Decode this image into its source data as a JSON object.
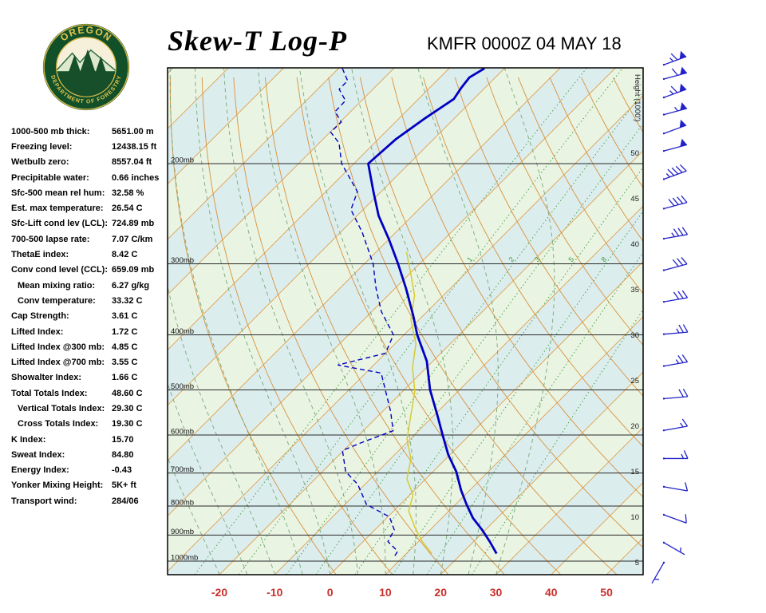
{
  "header": {
    "title": "Skew-T Log-P",
    "station_line": "KMFR 0000Z 04 MAY 18",
    "logo": {
      "top_text": "OREGON",
      "bottom_text": "DEPARTMENT OF FORESTRY"
    }
  },
  "indices": [
    {
      "label": "1000-500 mb thick:",
      "value": "5651.00 m",
      "indent": false
    },
    {
      "label": "Freezing level:",
      "value": "12438.15 ft",
      "indent": false
    },
    {
      "label": "Wetbulb zero:",
      "value": "8557.04 ft",
      "indent": false
    },
    {
      "label": "Precipitable water:",
      "value": "0.66 inches",
      "indent": false
    },
    {
      "label": "Sfc-500 mean rel hum:",
      "value": "32.58 %",
      "indent": false
    },
    {
      "label": "Est. max temperature:",
      "value": "26.54 C",
      "indent": false
    },
    {
      "label": "Sfc-Lift cond lev (LCL):",
      "value": "724.89 mb",
      "indent": false
    },
    {
      "label": "700-500 lapse rate:",
      "value": "7.07 C/km",
      "indent": false
    },
    {
      "label": "ThetaE index:",
      "value": "8.42 C",
      "indent": false
    },
    {
      "label": "Conv cond level (CCL):",
      "value": "659.09 mb",
      "indent": false
    },
    {
      "label": "Mean mixing ratio:",
      "value": "6.27 g/kg",
      "indent": true
    },
    {
      "label": "Conv temperature:",
      "value": "33.32 C",
      "indent": true
    },
    {
      "label": "Cap Strength:",
      "value": "3.61 C",
      "indent": false
    },
    {
      "label": "Lifted Index:",
      "value": "1.72 C",
      "indent": false
    },
    {
      "label": "Lifted Index @300 mb:",
      "value": "4.85 C",
      "indent": false
    },
    {
      "label": "Lifted Index @700 mb:",
      "value": "3.55 C",
      "indent": false
    },
    {
      "label": "Showalter Index:",
      "value": "1.66 C",
      "indent": false
    },
    {
      "label": "Total Totals Index:",
      "value": "48.60 C",
      "indent": false
    },
    {
      "label": "Vertical Totals Index:",
      "value": "29.30 C",
      "indent": true
    },
    {
      "label": "Cross Totals Index:",
      "value": "19.30 C",
      "indent": true
    },
    {
      "label": "K Index:",
      "value": "15.70",
      "indent": false
    },
    {
      "label": "Sweat Index:",
      "value": "84.80",
      "indent": false
    },
    {
      "label": "Energy Index:",
      "value": "-0.43",
      "indent": false
    },
    {
      "label": "Yonker Mixing Height:",
      "value": "5K+ ft",
      "indent": false
    },
    {
      "label": "Transport wind:",
      "value": "284/06",
      "indent": false
    }
  ],
  "chart_data": {
    "type": "line",
    "subtype": "skew-t-log-p",
    "title": "Skew-T Log-P",
    "station": "KMFR",
    "valid_time": "0000Z 04 MAY 18",
    "pressure_axis": {
      "levels_mb": [
        200,
        300,
        400,
        500,
        600,
        700,
        800,
        900,
        1000
      ],
      "top_mb": 135.7,
      "bottom_mb": 1056.5,
      "label_suffix": "mb"
    },
    "temp_axis": {
      "ticks_c": [
        -20,
        -10,
        0,
        10,
        20,
        30,
        40,
        50
      ],
      "color": "#c9302c"
    },
    "height_axis": {
      "label": "Height (1000')",
      "ticks_kft": [
        50,
        45,
        40,
        35,
        30,
        25,
        20,
        15,
        10,
        5
      ]
    },
    "isotherms": {
      "min": -130,
      "max": 60,
      "step": 10
    },
    "dry_adiabats_k": {
      "min": 270,
      "max": 460,
      "step": 10
    },
    "moist_adiabats_c": [
      -20,
      -15,
      -10,
      -5,
      0,
      5,
      10,
      15,
      20,
      25,
      30
    ],
    "mixing_ratio_gkg": [
      0.5,
      1,
      2,
      3,
      5,
      8,
      12,
      20
    ],
    "mixing_labels_gkg": [
      1,
      2,
      3,
      5,
      8
    ],
    "temperature_profile": [
      [
        136,
        -63.6
      ],
      [
        141,
        -64.7
      ],
      [
        147,
        -64.3
      ],
      [
        154,
        -63.6
      ],
      [
        167,
        -65.4
      ],
      [
        181,
        -66.8
      ],
      [
        200,
        -67.4
      ],
      [
        224,
        -61.4
      ],
      [
        247,
        -56.1
      ],
      [
        272,
        -49.9
      ],
      [
        300,
        -43.9
      ],
      [
        331,
        -38.1
      ],
      [
        370,
        -31.8
      ],
      [
        400,
        -27.6
      ],
      [
        445,
        -21.1
      ],
      [
        500,
        -15.3
      ],
      [
        554,
        -9.4
      ],
      [
        600,
        -4.9
      ],
      [
        650,
        -0.3
      ],
      [
        696,
        4.2
      ],
      [
        750,
        8.4
      ],
      [
        795,
        12.0
      ],
      [
        840,
        15.6
      ],
      [
        881,
        19.4
      ],
      [
        924,
        22.9
      ],
      [
        970,
        26.3
      ]
    ],
    "dewpoint_profile": [
      [
        136,
        -89.3
      ],
      [
        143,
        -86.1
      ],
      [
        148,
        -86.1
      ],
      [
        155,
        -82.9
      ],
      [
        162,
        -82.8
      ],
      [
        169,
        -79.8
      ],
      [
        176,
        -79.9
      ],
      [
        184,
        -76.4
      ],
      [
        200,
        -72.2
      ],
      [
        224,
        -64.3
      ],
      [
        241,
        -62.2
      ],
      [
        264,
        -56.1
      ],
      [
        300,
        -48.4
      ],
      [
        331,
        -43.5
      ],
      [
        364,
        -38.3
      ],
      [
        400,
        -31.9
      ],
      [
        431,
        -30.0
      ],
      [
        452,
        -36.5
      ],
      [
        467,
        -27.2
      ],
      [
        500,
        -23.4
      ],
      [
        545,
        -18.6
      ],
      [
        590,
        -14.6
      ],
      [
        619,
        -18.2
      ],
      [
        639,
        -20.2
      ],
      [
        696,
        -15.8
      ],
      [
        733,
        -11.3
      ],
      [
        795,
        -6.1
      ],
      [
        836,
        0.3
      ],
      [
        881,
        3.5
      ],
      [
        924,
        4.5
      ],
      [
        961,
        8.0
      ],
      [
        985,
        8.4
      ]
    ],
    "wetbulb_profile": [
      [
        286,
        -44.5
      ],
      [
        310,
        -40.2
      ],
      [
        341,
        -35.2
      ],
      [
        376,
        -31.5
      ],
      [
        415,
        -26.2
      ],
      [
        457,
        -22.5
      ],
      [
        503,
        -17.8
      ],
      [
        554,
        -14.2
      ],
      [
        610,
        -10.6
      ],
      [
        661,
        -6.3
      ],
      [
        717,
        -3.4
      ],
      [
        765,
        0.6
      ],
      [
        816,
        2.7
      ],
      [
        871,
        6.7
      ],
      [
        924,
        10.7
      ],
      [
        970,
        14.6
      ]
    ],
    "wind_barbs": [
      {
        "p": 134,
        "dir": 250,
        "spd": 65
      },
      {
        "p": 142,
        "dir": 255,
        "spd": 60
      },
      {
        "p": 153,
        "dir": 250,
        "spd": 65
      },
      {
        "p": 164,
        "dir": 255,
        "spd": 55
      },
      {
        "p": 177,
        "dir": 250,
        "spd": 50
      },
      {
        "p": 190,
        "dir": 255,
        "spd": 50
      },
      {
        "p": 213,
        "dir": 250,
        "spd": 45
      },
      {
        "p": 240,
        "dir": 255,
        "spd": 40
      },
      {
        "p": 271,
        "dir": 260,
        "spd": 35
      },
      {
        "p": 308,
        "dir": 255,
        "spd": 30
      },
      {
        "p": 350,
        "dir": 260,
        "spd": 30
      },
      {
        "p": 399,
        "dir": 265,
        "spd": 25
      },
      {
        "p": 454,
        "dir": 260,
        "spd": 25
      },
      {
        "p": 518,
        "dir": 265,
        "spd": 20
      },
      {
        "p": 589,
        "dir": 260,
        "spd": 15
      },
      {
        "p": 660,
        "dir": 270,
        "spd": 15
      },
      {
        "p": 740,
        "dir": 280,
        "spd": 10
      },
      {
        "p": 829,
        "dir": 290,
        "spd": 10
      },
      {
        "p": 928,
        "dir": 300,
        "spd": 5
      },
      {
        "p": 1006,
        "dir": 30,
        "spd": 5
      }
    ],
    "colors": {
      "band_a": "#e9f4e3",
      "band_b": "#dcedee",
      "isotherm": "#e0a04e",
      "dry_adiabat": "#d9913c",
      "moist_adiabat": "#79a879",
      "mixing_line": "#3c9a3c",
      "pressure_line": "#2a2a2a",
      "temperature": "#0000c0",
      "dewpoint": "#0000c0",
      "wetbulb": "#d7ca35",
      "barb": "#2222c8"
    }
  }
}
